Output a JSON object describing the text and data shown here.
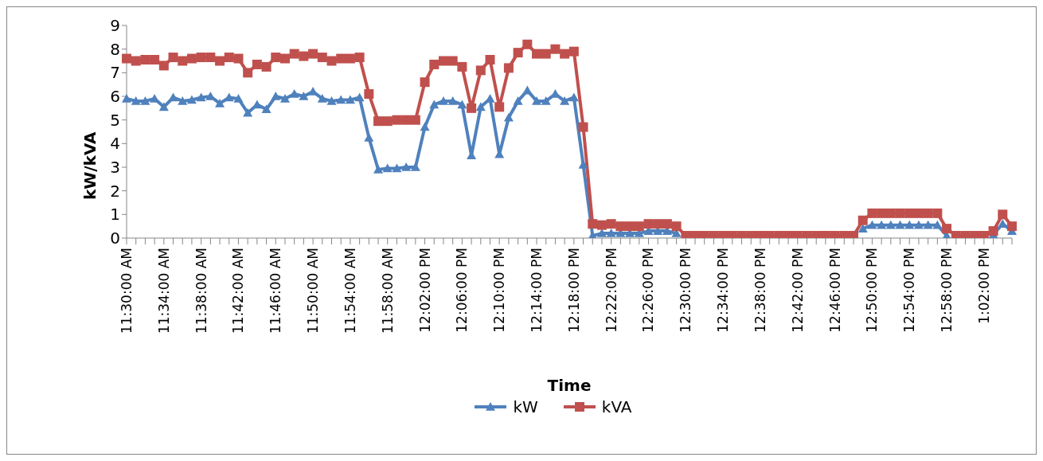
{
  "chart_data": {
    "type": "line",
    "xlabel": "Time",
    "ylabel": "kW/kVA",
    "categories": [
      "11:30:00 AM",
      null,
      null,
      null,
      "11:34:00 AM",
      null,
      null,
      null,
      "11:38:00 AM",
      null,
      null,
      null,
      "11:42:00 AM",
      null,
      null,
      null,
      "11:46:00 AM",
      null,
      null,
      null,
      "11:50:00 AM",
      null,
      null,
      null,
      "11:54:00 AM",
      null,
      null,
      null,
      "11:58:00 AM",
      null,
      null,
      null,
      "12:02:00 PM",
      null,
      null,
      null,
      "12:06:00 PM",
      null,
      null,
      null,
      "12:10:00 PM",
      null,
      null,
      null,
      "12:14:00 PM",
      null,
      null,
      null,
      "12:18:00 PM",
      null,
      null,
      null,
      "12:22:00 PM",
      null,
      null,
      null,
      "12:26:00 PM",
      null,
      null,
      null,
      "12:30:00 PM",
      null,
      null,
      null,
      "12:34:00 PM",
      null,
      null,
      null,
      "12:38:00 PM",
      null,
      null,
      null,
      "12:42:00 PM",
      null,
      null,
      null,
      "12:46:00 PM",
      null,
      null,
      null,
      "12:50:00 PM",
      null,
      null,
      null,
      "12:54:00 PM",
      null,
      null,
      null,
      "12:58:00 PM",
      null,
      null,
      null,
      "1:02:00 PM",
      null,
      null,
      null
    ],
    "series": [
      {
        "name": "kW",
        "color": "#4f81bd",
        "marker": "triangle",
        "values": [
          5.9,
          5.8,
          5.8,
          5.9,
          5.55,
          5.95,
          5.8,
          5.85,
          5.95,
          6.0,
          5.7,
          5.95,
          5.9,
          5.3,
          5.65,
          5.45,
          6.0,
          5.9,
          6.1,
          6.0,
          6.2,
          5.9,
          5.8,
          5.85,
          5.85,
          5.95,
          4.25,
          2.9,
          2.95,
          2.95,
          3.0,
          3.0,
          4.7,
          5.65,
          5.8,
          5.8,
          5.65,
          3.5,
          5.55,
          5.9,
          3.55,
          5.1,
          5.8,
          6.25,
          5.8,
          5.8,
          6.1,
          5.8,
          5.95,
          3.1,
          0.1,
          0.2,
          0.2,
          0.2,
          0.2,
          0.2,
          0.3,
          0.3,
          0.3,
          0.2,
          null,
          null,
          null,
          null,
          null,
          null,
          null,
          null,
          null,
          null,
          null,
          null,
          null,
          null,
          null,
          null,
          null,
          null,
          null,
          0.4,
          0.55,
          0.55,
          0.55,
          0.55,
          0.55,
          0.55,
          0.55,
          0.55,
          0.1,
          null,
          null,
          null,
          null,
          0.15,
          0.6,
          0.3
        ]
      },
      {
        "name": "kVA",
        "color": "#c0504d",
        "marker": "square",
        "values": [
          7.6,
          7.5,
          7.55,
          7.55,
          7.3,
          7.65,
          7.5,
          7.6,
          7.65,
          7.65,
          7.5,
          7.65,
          7.6,
          7.0,
          7.35,
          7.25,
          7.65,
          7.6,
          7.8,
          7.7,
          7.8,
          7.65,
          7.5,
          7.6,
          7.6,
          7.65,
          6.1,
          4.95,
          4.95,
          5.0,
          5.0,
          5.0,
          6.6,
          7.35,
          7.5,
          7.5,
          7.25,
          5.5,
          7.1,
          7.55,
          5.55,
          7.2,
          7.85,
          8.2,
          7.8,
          7.8,
          8.0,
          7.8,
          7.9,
          4.7,
          0.6,
          0.55,
          0.6,
          0.5,
          0.5,
          0.5,
          0.6,
          0.6,
          0.6,
          0.5,
          0.1,
          0.1,
          0.1,
          0.1,
          0.1,
          0.1,
          0.1,
          0.1,
          0.1,
          0.1,
          0.1,
          0.1,
          0.1,
          0.1,
          0.1,
          0.1,
          0.1,
          0.1,
          0.1,
          0.75,
          1.05,
          1.05,
          1.05,
          1.05,
          1.05,
          1.05,
          1.05,
          1.05,
          0.4,
          0.1,
          0.1,
          0.1,
          0.1,
          0.3,
          1.0,
          0.5
        ]
      }
    ],
    "ylim": [
      0,
      9
    ],
    "yticks": [
      0,
      1,
      2,
      3,
      4,
      5,
      6,
      7,
      8,
      9
    ],
    "grid": false,
    "legend": "bottom",
    "line_style": "solid"
  }
}
